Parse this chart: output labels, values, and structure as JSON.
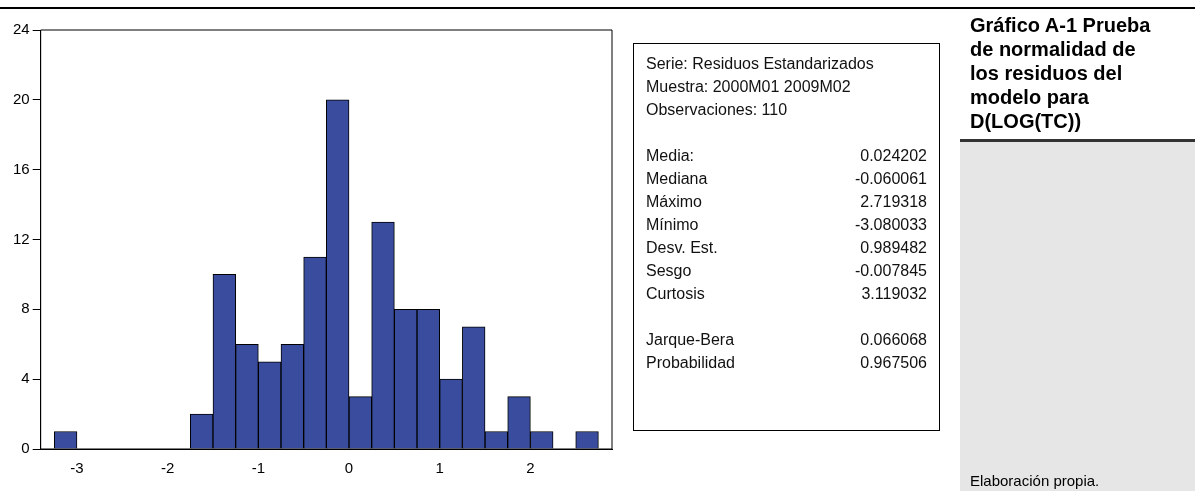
{
  "chart_data": {
    "type": "histogram",
    "title": "Gráfico A-1 Prueba de normalidad de los residuos del modelo para D(LOG(TC))",
    "bins": [
      -3.25,
      -3,
      -2.75,
      -2.5,
      -2.25,
      -2,
      -1.75,
      -1.5,
      -1.25,
      -1,
      -0.75,
      -0.5,
      -0.25,
      0,
      0.25,
      0.5,
      0.75,
      1,
      1.25,
      1.5,
      1.75,
      2,
      2.25,
      2.5,
      2.75
    ],
    "values": [
      1,
      0,
      0,
      0,
      0,
      0,
      2,
      10,
      6,
      5,
      6,
      11,
      20,
      3,
      13,
      8,
      8,
      4,
      7,
      1,
      3,
      1,
      0,
      1
    ],
    "color": "#3a4c9e",
    "xlim": [
      -3.4,
      2.9
    ],
    "xticks": [
      -3,
      -2,
      -1,
      0,
      1,
      2
    ],
    "ylim": [
      0,
      24
    ],
    "yticks": [
      0,
      4,
      8,
      12,
      16,
      20,
      24
    ],
    "grid": false,
    "annotations": [
      "Serie: Residuos Estandarizados",
      "Muestra: 2000M01 2009M02",
      "Observaciones: 110",
      "Media: 0.024202",
      "Mediana -0.060061",
      "Máximo 2.719318",
      "Mínimo -3.080033",
      "Desv. Est. 0.989482",
      "Sesgo -0.007845",
      "Curtosis 3.119032",
      "Jarque-Bera 0.066068",
      "Probabilidad 0.967506",
      "Elaboración propia."
    ]
  }
}
